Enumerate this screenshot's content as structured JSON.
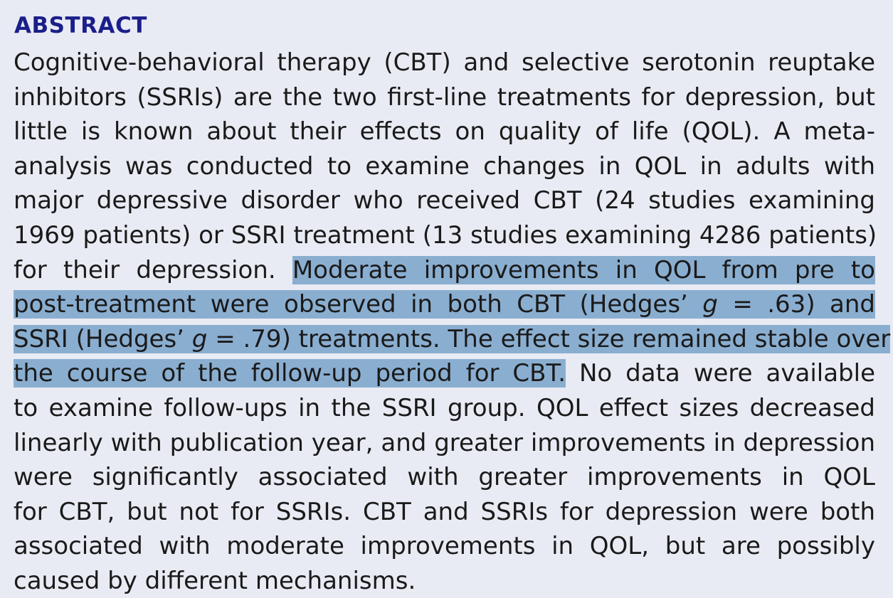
{
  "abstract": {
    "heading": "ABSTRACT",
    "lines": [
      {
        "segments": [
          {
            "text": "Cognitive-behavioral therapy (CBT) and selective serotonin reuptake",
            "highlight": false
          }
        ]
      },
      {
        "segments": [
          {
            "text": "inhibitors (SSRIs) are the two first-line treatments for depression, but",
            "highlight": false
          }
        ]
      },
      {
        "segments": [
          {
            "text": "little is known about their effects on quality of life (QOL). A meta-",
            "highlight": false
          }
        ]
      },
      {
        "segments": [
          {
            "text": "analysis was conducted to examine changes in QOL in adults with",
            "highlight": false
          }
        ]
      },
      {
        "segments": [
          {
            "text": "major depressive disorder who received CBT (24 studies examining",
            "highlight": false
          }
        ]
      },
      {
        "segments": [
          {
            "text": "1969 patients) or SSRI treatment (13 studies examining 4286 patients)",
            "highlight": false
          }
        ]
      },
      {
        "segments": [
          {
            "text": "for their depression. ",
            "highlight": false
          },
          {
            "text": "Moderate improvements in QOL from pre to",
            "highlight": true
          }
        ]
      },
      {
        "segments": [
          {
            "text": "post-treatment were observed in both CBT (Hedges’ ",
            "highlight": true
          },
          {
            "text": "g",
            "highlight": true,
            "italic": true
          },
          {
            "text": " = .63) and",
            "highlight": true
          }
        ]
      },
      {
        "segments": [
          {
            "text": "SSRI (Hedges’ ",
            "highlight": true
          },
          {
            "text": "g",
            "highlight": true,
            "italic": true
          },
          {
            "text": " = .79) treatments. The effect size remained stable over",
            "highlight": true
          }
        ]
      },
      {
        "segments": [
          {
            "text": "the course of the follow-up period for CBT.",
            "highlight": true
          },
          {
            "text": " No data were available",
            "highlight": false
          }
        ]
      },
      {
        "segments": [
          {
            "text": "to examine follow-ups in the SSRI group. QOL effect sizes decreased",
            "highlight": false
          }
        ]
      },
      {
        "segments": [
          {
            "text": "linearly with publication year, and greater improvements in depression",
            "highlight": false
          }
        ]
      },
      {
        "segments": [
          {
            "text": "were significantly associated with greater improvements in QOL",
            "highlight": false
          }
        ]
      },
      {
        "segments": [
          {
            "text": "for CBT, but not for SSRIs. CBT and SSRIs for depression were both",
            "highlight": false
          }
        ]
      },
      {
        "segments": [
          {
            "text": "associated with moderate improvements in QOL, but are possibly",
            "highlight": false
          }
        ]
      },
      {
        "segments": [
          {
            "text": "caused by different mechanisms.",
            "highlight": false
          }
        ]
      }
    ]
  },
  "colors": {
    "background": "#e9ebf4",
    "heading": "#1b1f8a",
    "text": "#1a1a1a",
    "highlight": "#8aaed0"
  }
}
